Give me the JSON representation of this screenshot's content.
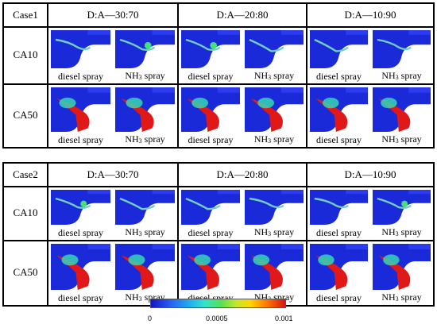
{
  "panels": [
    {
      "case_label": "Case1",
      "columns": [
        "D:A—30:70",
        "D:A—20:80",
        "D:A—10:90"
      ],
      "rows": [
        "CA10",
        "CA50"
      ]
    },
    {
      "case_label": "Case2",
      "columns": [
        "D:A—30:70",
        "D:A—20:80",
        "D:A—10:90"
      ],
      "rows": [
        "CA10",
        "CA50"
      ]
    }
  ],
  "captions": {
    "diesel": "diesel spray",
    "nh3_prefix": "NH",
    "nh3_sub": "3",
    "nh3_suffix": " spray"
  },
  "colorbar": {
    "ticks": [
      "0",
      "0.0005",
      "0.001"
    ],
    "colors": [
      "#1414c8",
      "#1fb4f0",
      "#55e055",
      "#ffd400",
      "#d41414"
    ]
  }
}
